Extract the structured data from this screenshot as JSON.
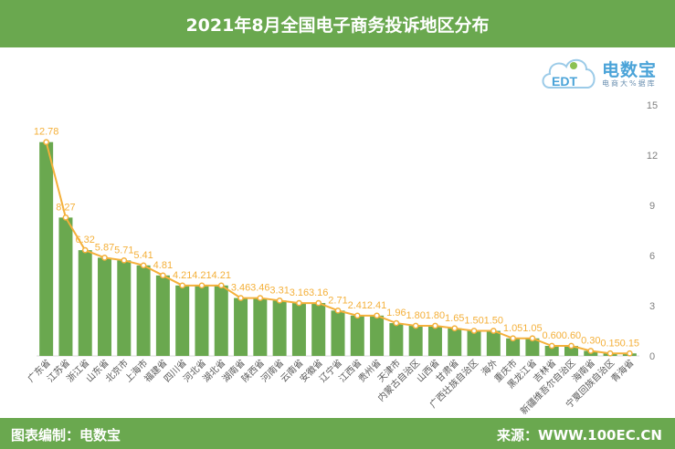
{
  "header": {
    "title": "2021年8月全国电子商务投诉地区分布"
  },
  "logo": {
    "brand": "电数宝",
    "tagline": "电商大%据库",
    "badge": "EDT"
  },
  "footer": {
    "left": "图表编制：电数宝",
    "right": "来源：WWW.100EC.CN"
  },
  "colors": {
    "bar": "#6aa84f",
    "line": "#f4b03a",
    "header": "#6aa84f"
  },
  "chart_data": {
    "type": "bar",
    "categories": [
      "广东省",
      "江苏省",
      "浙江省",
      "山东省",
      "北京市",
      "上海市",
      "福建省",
      "四川省",
      "河北省",
      "湖北省",
      "湖南省",
      "陕西省",
      "河南省",
      "云南省",
      "安徽省",
      "辽宁省",
      "江西省",
      "贵州省",
      "天津市",
      "内蒙古自治区",
      "山西省",
      "甘肃省",
      "广西壮族自治区",
      "海外",
      "重庆市",
      "黑龙江省",
      "吉林省",
      "新疆维吾尔自治区",
      "海南省",
      "宁夏回族自治区",
      "青海省"
    ],
    "values": [
      12.78,
      8.27,
      6.32,
      5.87,
      5.71,
      5.41,
      4.81,
      4.21,
      4.21,
      4.21,
      3.46,
      3.46,
      3.31,
      3.16,
      3.16,
      2.71,
      2.41,
      2.41,
      1.96,
      1.8,
      1.8,
      1.65,
      1.5,
      1.5,
      1.05,
      1.05,
      0.6,
      0.6,
      0.3,
      0.15,
      0.15
    ],
    "data_labels": [
      "12.78",
      "8.27",
      "6.32",
      "5.87",
      "5.71",
      "5.41",
      "4.81",
      "4.21",
      "4.21",
      "4.21",
      "3.46",
      "3.46",
      "3.31",
      "3.16",
      "3.16",
      "2.71",
      "2.41",
      "2.41",
      "1.96",
      "1.80",
      "1.80",
      "1.65",
      "1.50",
      "1.50",
      "1.05",
      "1.05",
      "0.60",
      "0.60",
      "0.30",
      "0.15",
      "0.15"
    ],
    "y_ticks": [
      0,
      3,
      6,
      9,
      12,
      15
    ],
    "ylim": [
      0,
      15
    ],
    "y_axis_side": "right",
    "overlay": "line with markers through bar tops",
    "grid": false,
    "legend": "none"
  }
}
